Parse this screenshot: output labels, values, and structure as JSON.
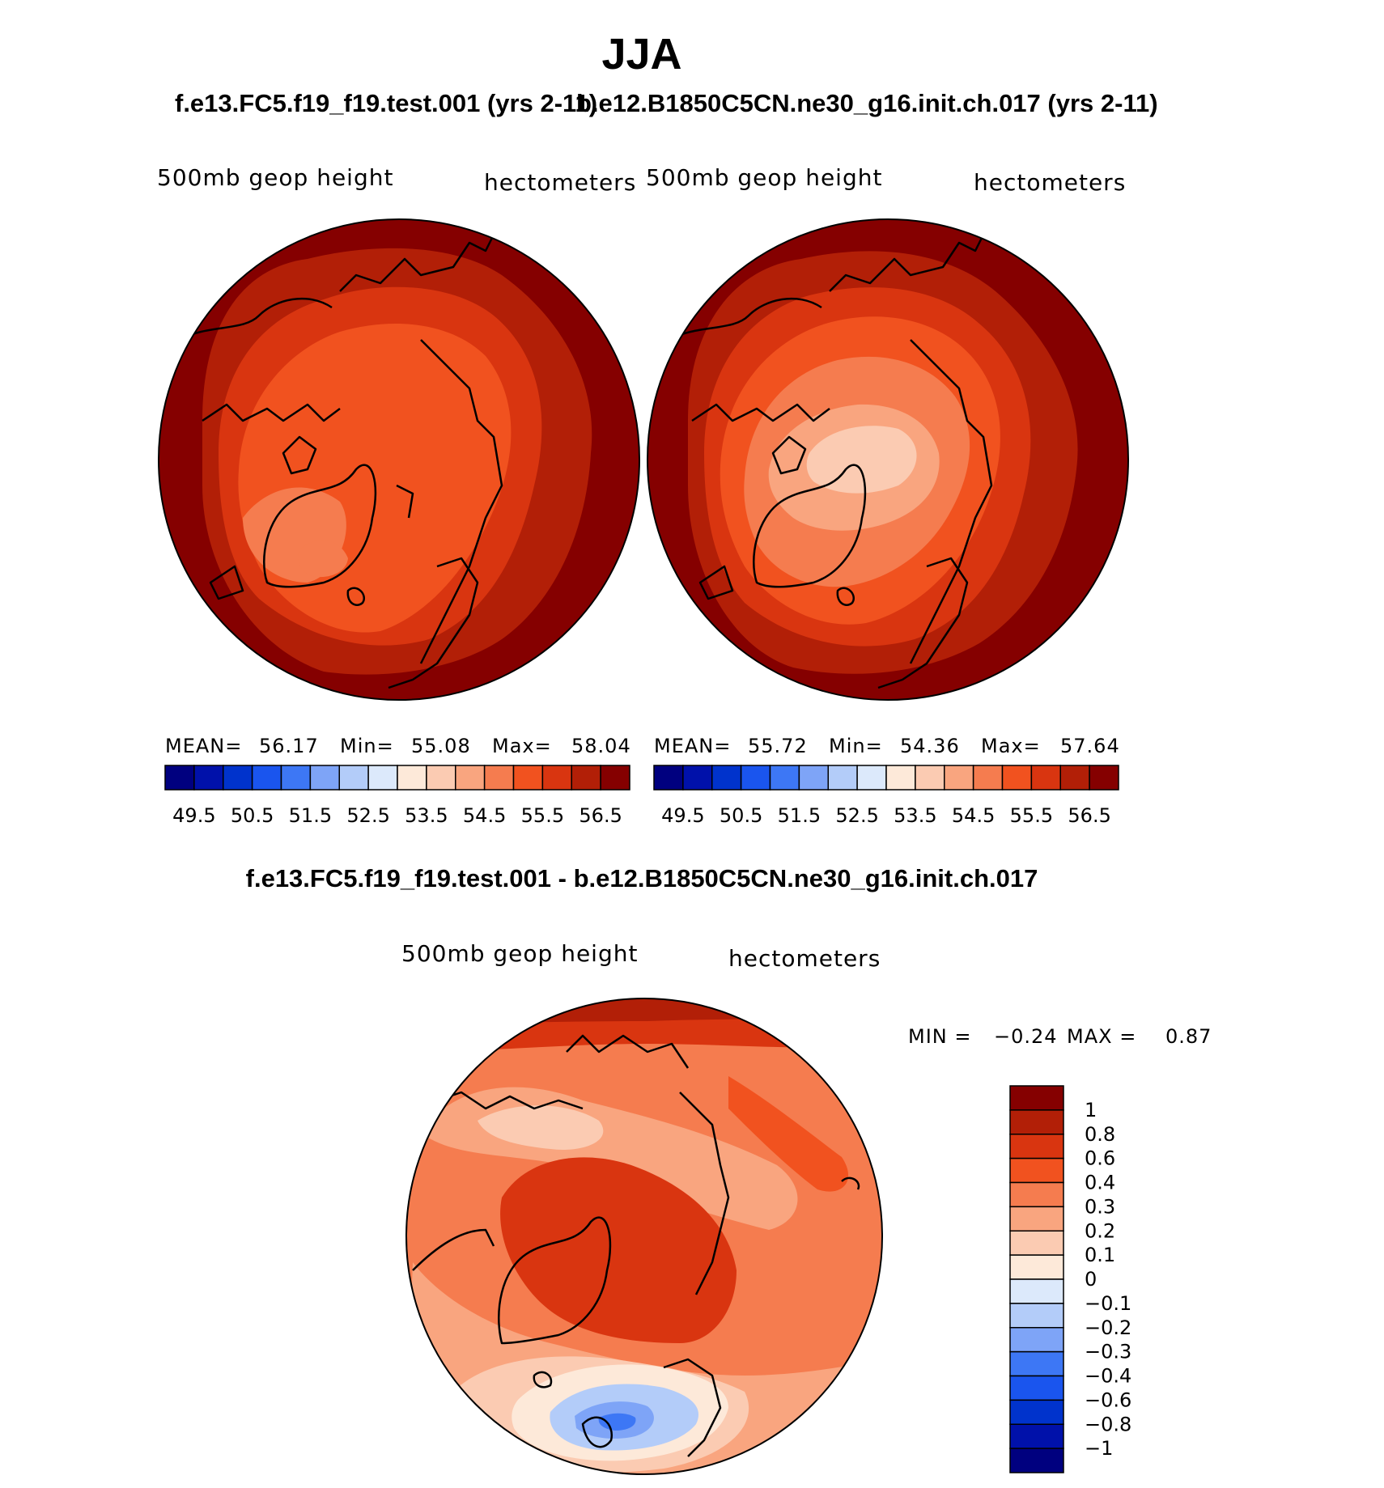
{
  "title": "JJA",
  "panels": [
    {
      "case_title": "f.e13.FC5.f19_f19.test.001 (yrs 2-11)",
      "variable_label": "500mb geop height",
      "units_label": "hectometers",
      "stats": {
        "mean_label": "MEAN=",
        "mean": "56.17",
        "min_label": "Min=",
        "min": "55.08",
        "max_label": "Max=",
        "max": "58.04"
      }
    },
    {
      "case_title": "b.e12.B1850C5CN.ne30_g16.init.ch.017 (yrs 2-11)",
      "variable_label": "500mb geop height",
      "units_label": "hectometers",
      "stats": {
        "mean_label": "MEAN=",
        "mean": "55.72",
        "min_label": "Min=",
        "min": "54.36",
        "max_label": "Max=",
        "max": "57.64"
      }
    }
  ],
  "abs_colorbar": {
    "colors": [
      "#00007f",
      "#0011aa",
      "#0033cc",
      "#1a55ee",
      "#3d77f5",
      "#7ea4f7",
      "#b3ccf9",
      "#dce9fb",
      "#fde9d9",
      "#fbcbb2",
      "#f9a57f",
      "#f57c4f",
      "#f1521f",
      "#d93510",
      "#b21f07",
      "#850000"
    ],
    "tick_labels": [
      "49.5",
      "50.5",
      "51.5",
      "52.5",
      "53.5",
      "54.5",
      "55.5",
      "56.5"
    ]
  },
  "difference": {
    "title": "f.e13.FC5.f19_f19.test.001 - b.e12.B1850C5CN.ne30_g16.init.ch.017",
    "variable_label": "500mb geop height",
    "units_label": "hectometers",
    "min_label": "MIN =",
    "min": "−0.24",
    "max_label": "MAX =",
    "max": "0.87",
    "colorbar": {
      "colors_top_to_bottom": [
        "#850000",
        "#b21f07",
        "#d93510",
        "#f1521f",
        "#f57c4f",
        "#f9a57f",
        "#fbcbb2",
        "#fde9d9",
        "#dce9fb",
        "#b3ccf9",
        "#7ea4f7",
        "#3d77f5",
        "#1a55ee",
        "#0033cc",
        "#0011aa",
        "#00007f"
      ],
      "tick_labels": [
        "1",
        "0.8",
        "0.6",
        "0.4",
        "0.3",
        "0.2",
        "0.1",
        "0",
        "−0.1",
        "−0.2",
        "−0.3",
        "−0.4",
        "−0.6",
        "−0.8",
        "−1"
      ]
    }
  }
}
